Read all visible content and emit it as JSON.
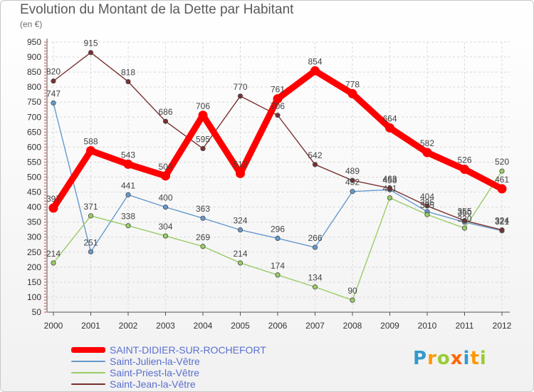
{
  "chart_data": {
    "type": "line",
    "title": "Evolution du Montant de la Dette par Habitant",
    "subtitle": "(en €)",
    "x": [
      "2000",
      "2001",
      "2002",
      "2003",
      "2004",
      "2005",
      "2006",
      "2007",
      "2008",
      "2009",
      "2010",
      "2011",
      "2012"
    ],
    "ylim": [
      50,
      950
    ],
    "yticks": [
      50,
      100,
      150,
      200,
      250,
      300,
      350,
      400,
      450,
      500,
      550,
      600,
      650,
      700,
      750,
      800,
      850,
      900,
      950
    ],
    "grid": true,
    "legend_position": "bottom-left",
    "series": [
      {
        "name": "SAINT-DIDIER-SUR-ROCHEFORT",
        "color": "#ff0000",
        "values": [
          397,
          588,
          543,
          504,
          706,
          512,
          761,
          854,
          778,
          664,
          582,
          526,
          461
        ]
      },
      {
        "name": "Saint-Julien-la-Vêtre",
        "color": "#6699cc",
        "values": [
          747,
          251,
          441,
          400,
          363,
          324,
          296,
          266,
          452,
          458,
          385,
          350,
          321
        ]
      },
      {
        "name": "Saint-Priest-la-Vêtre",
        "color": "#99cc66",
        "values": [
          214,
          371,
          338,
          304,
          269,
          214,
          174,
          134,
          90,
          431,
          375,
          330,
          520
        ]
      },
      {
        "name": "Saint-Jean-la-Vêtre",
        "color": "#7a3030",
        "values": [
          820,
          915,
          818,
          686,
          595,
          770,
          706,
          542,
          489,
          463,
          404,
          355,
          324
        ]
      }
    ]
  },
  "logo": {
    "text": "Proxiti",
    "letter_colors": [
      "#3399cc",
      "#ff9900",
      "#99cc33",
      "#ff6600",
      "#3399cc",
      "#ff9900",
      "#99cc33"
    ]
  }
}
